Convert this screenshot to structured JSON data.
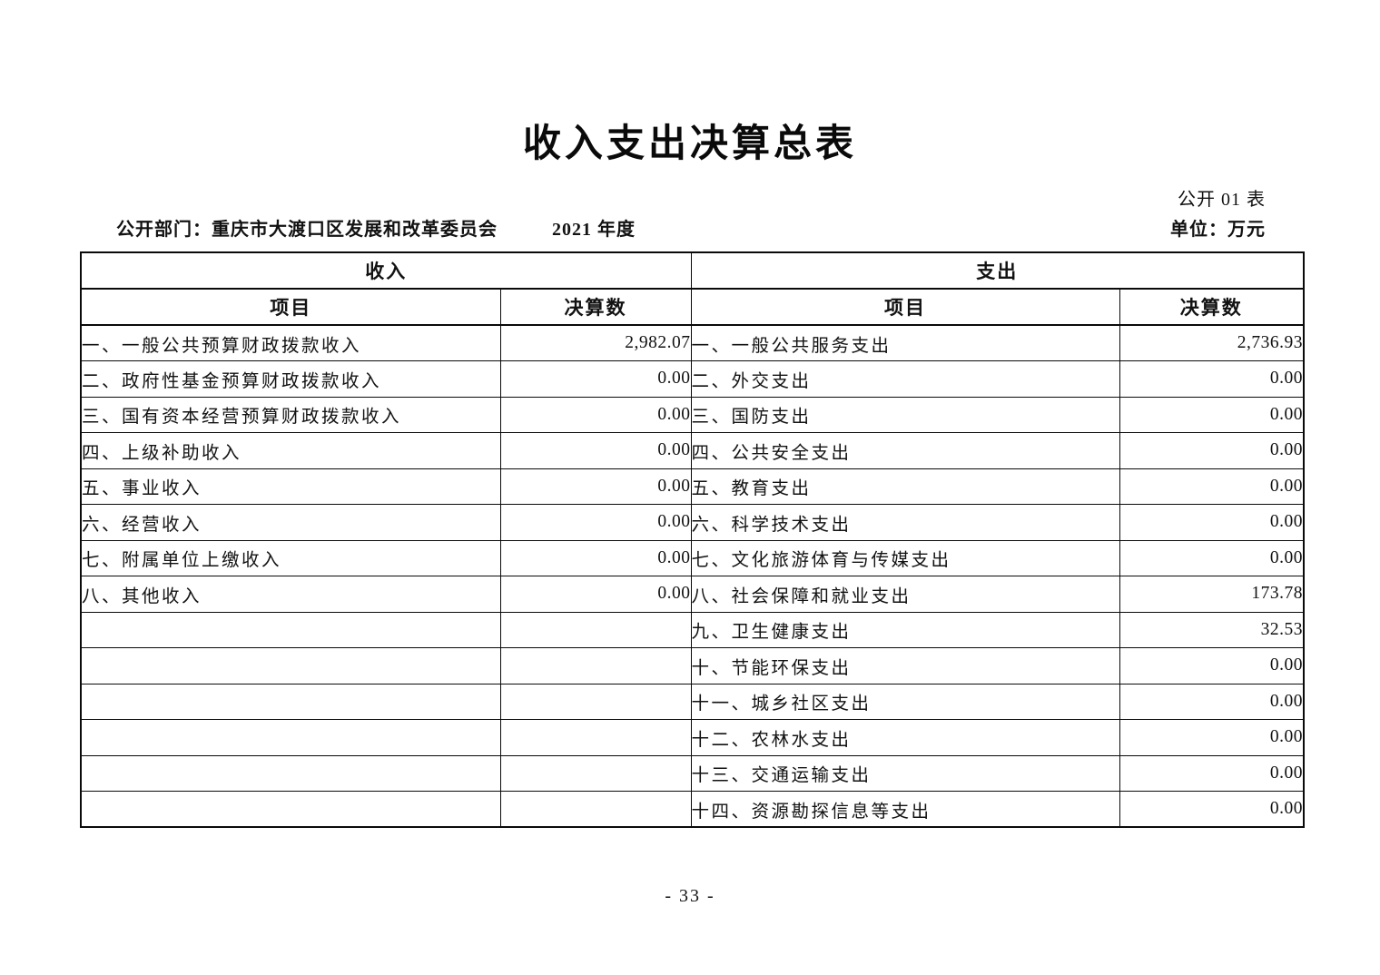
{
  "page": {
    "title": "收入支出决算总表",
    "table_number": "公开 01 表",
    "department": "公开部门：重庆市大渡口区发展和改革委员会",
    "fiscal_year": "2021 年度",
    "unit": "单位：万元",
    "page_number": "- 33 -"
  },
  "table": {
    "income_section_header": "收入",
    "expense_section_header": "支出",
    "item_header": "项目",
    "amount_header": "决算数",
    "income_rows": [
      {
        "item": "一、一般公共预算财政拨款收入",
        "amount": "2,982.07"
      },
      {
        "item": "二、政府性基金预算财政拨款收入",
        "amount": "0.00"
      },
      {
        "item": "三、国有资本经营预算财政拨款收入",
        "amount": "0.00"
      },
      {
        "item": "四、上级补助收入",
        "amount": "0.00"
      },
      {
        "item": "五、事业收入",
        "amount": "0.00"
      },
      {
        "item": "六、经营收入",
        "amount": "0.00"
      },
      {
        "item": "七、附属单位上缴收入",
        "amount": "0.00"
      },
      {
        "item": "八、其他收入",
        "amount": "0.00"
      },
      {
        "item": "",
        "amount": ""
      },
      {
        "item": "",
        "amount": ""
      },
      {
        "item": "",
        "amount": ""
      },
      {
        "item": "",
        "amount": ""
      },
      {
        "item": "",
        "amount": ""
      },
      {
        "item": "",
        "amount": ""
      }
    ],
    "expense_rows": [
      {
        "item": "一、一般公共服务支出",
        "amount": "2,736.93"
      },
      {
        "item": "二、外交支出",
        "amount": "0.00"
      },
      {
        "item": "三、国防支出",
        "amount": "0.00"
      },
      {
        "item": "四、公共安全支出",
        "amount": "0.00"
      },
      {
        "item": "五、教育支出",
        "amount": "0.00"
      },
      {
        "item": "六、科学技术支出",
        "amount": "0.00"
      },
      {
        "item": "七、文化旅游体育与传媒支出",
        "amount": "0.00"
      },
      {
        "item": "八、社会保障和就业支出",
        "amount": "173.78"
      },
      {
        "item": "九、卫生健康支出",
        "amount": "32.53"
      },
      {
        "item": "十、节能环保支出",
        "amount": "0.00"
      },
      {
        "item": "十一、城乡社区支出",
        "amount": "0.00"
      },
      {
        "item": "十二、农林水支出",
        "amount": "0.00"
      },
      {
        "item": "十三、交通运输支出",
        "amount": "0.00"
      },
      {
        "item": "十四、资源勘探信息等支出",
        "amount": "0.00"
      }
    ]
  }
}
